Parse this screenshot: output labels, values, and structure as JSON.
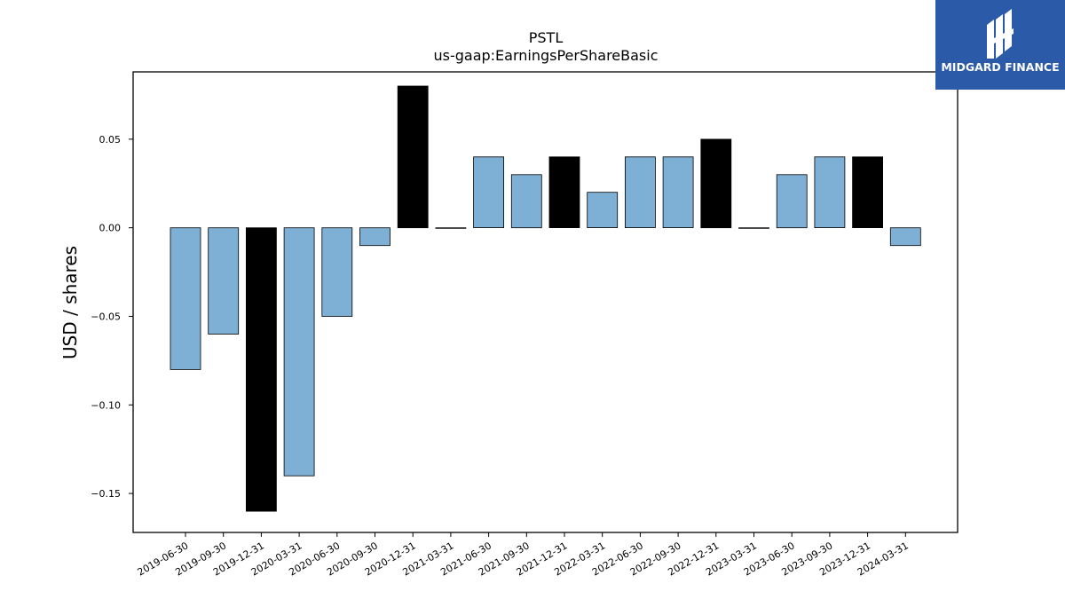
{
  "chart_data": {
    "type": "bar",
    "title": "PSTL",
    "subtitle": "us-gaap:EarningsPerShareBasic",
    "xlabel": "",
    "ylabel": "USD / shares",
    "ylim": [
      -0.172,
      0.088
    ],
    "yticks": [
      -0.15,
      -0.1,
      -0.05,
      0.0,
      0.05
    ],
    "ytick_labels": [
      "−0.15",
      "−0.10",
      "−0.05",
      "0.00",
      "0.05"
    ],
    "grid": false,
    "categories": [
      "2019-06-30",
      "2019-09-30",
      "2019-12-31",
      "2020-03-31",
      "2020-06-30",
      "2020-09-30",
      "2020-12-31",
      "2021-03-31",
      "2021-06-30",
      "2021-09-30",
      "2021-12-31",
      "2022-03-31",
      "2022-06-30",
      "2022-09-30",
      "2022-12-31",
      "2023-03-31",
      "2023-06-30",
      "2023-09-30",
      "2023-12-31",
      "2024-03-31"
    ],
    "values": [
      -0.08,
      -0.06,
      -0.16,
      -0.14,
      -0.05,
      -0.01,
      0.08,
      0.0,
      0.04,
      0.03,
      0.04,
      0.02,
      0.04,
      0.04,
      0.05,
      0.0,
      0.03,
      0.04,
      0.04,
      -0.01
    ],
    "bar_colors": [
      "#7eb0d5",
      "#7eb0d5",
      "#000000",
      "#7eb0d5",
      "#7eb0d5",
      "#7eb0d5",
      "#000000",
      "#7eb0d5",
      "#7eb0d5",
      "#7eb0d5",
      "#000000",
      "#7eb0d5",
      "#7eb0d5",
      "#7eb0d5",
      "#000000",
      "#7eb0d5",
      "#7eb0d5",
      "#7eb0d5",
      "#000000",
      "#7eb0d5"
    ]
  },
  "brand": {
    "logo_text": "MIDGARD FINANCE",
    "logo_bg": "#2b5aa8"
  }
}
